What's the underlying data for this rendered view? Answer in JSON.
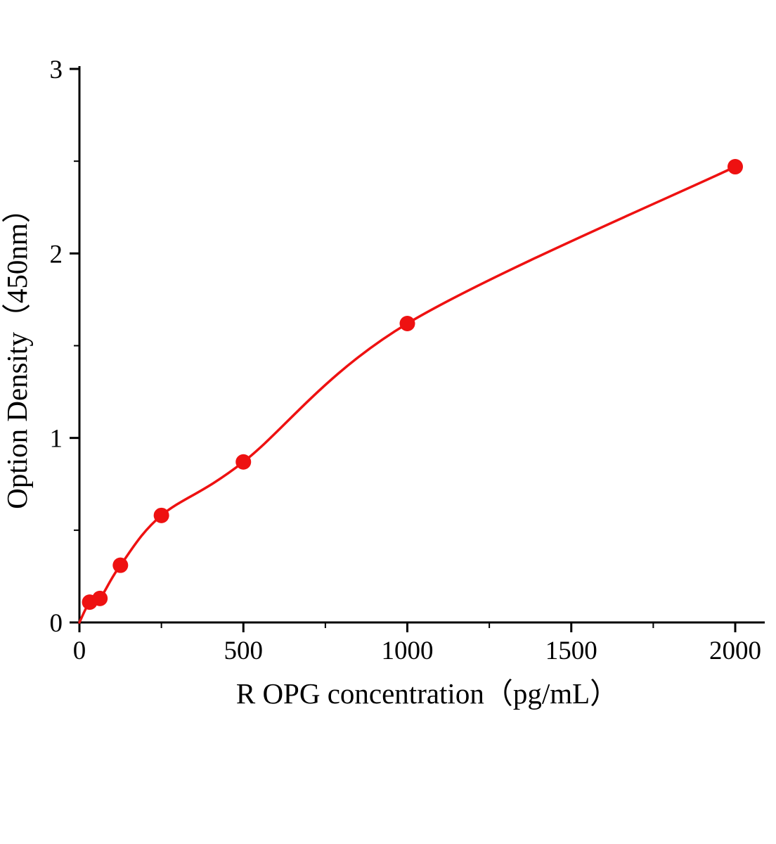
{
  "chart_data": {
    "type": "scatter",
    "title": "",
    "xlabel": "R OPG concentration（pg/mL）",
    "ylabel": "Option Density（450nm）",
    "x": [
      31.2,
      62.5,
      125,
      250,
      500,
      1000,
      2000
    ],
    "y": [
      0.11,
      0.13,
      0.31,
      0.58,
      0.87,
      1.62,
      2.47
    ],
    "curve_starts_at_origin": true,
    "xlim": [
      0,
      2090
    ],
    "ylim": [
      0,
      3
    ],
    "x_ticks": [
      0,
      500,
      1000,
      1500,
      2000
    ],
    "y_ticks": [
      0,
      1,
      2,
      3
    ],
    "x_minor_step": 250,
    "y_minor_step": 0.5,
    "grid": false,
    "legend_position": "none",
    "point_color": "#ee1111",
    "line_color": "#ee1111",
    "axis_color": "#000000"
  }
}
